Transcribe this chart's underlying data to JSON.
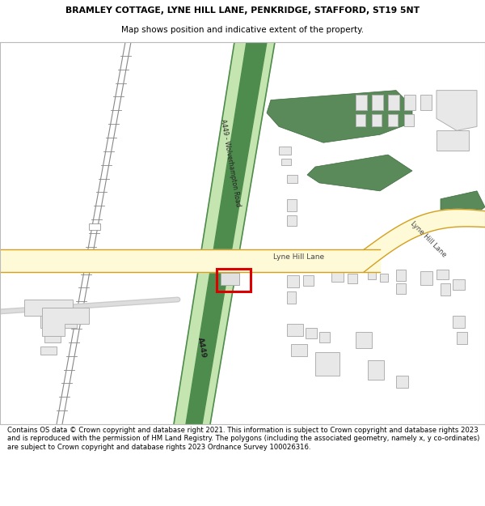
{
  "title_line1": "BRAMLEY COTTAGE, LYNE HILL LANE, PENKRIDGE, STAFFORD, ST19 5NT",
  "title_line2": "Map shows position and indicative extent of the property.",
  "footer_text": "Contains OS data © Crown copyright and database right 2021. This information is subject to Crown copyright and database rights 2023 and is reproduced with the permission of HM Land Registry. The polygons (including the associated geometry, namely x, y co-ordinates) are subject to Crown copyright and database rights 2023 Ordnance Survey 100026316.",
  "bg_color": "#ffffff",
  "map_bg": "#ffffff",
  "road_yellow_fill": "#fef9d6",
  "road_yellow_border": "#d4a020",
  "road_green_light": "#c5e5b0",
  "road_green_dark": "#4e8c4e",
  "building_fill": "#e0e0e0",
  "building_border": "#b8b8b8",
  "plot_border": "#dd0000",
  "title_color": "#000000",
  "header_bg": "#ffffff",
  "footer_bg": "#ffffff",
  "green_area": "#5a8a5a",
  "railway_color": "#888888"
}
